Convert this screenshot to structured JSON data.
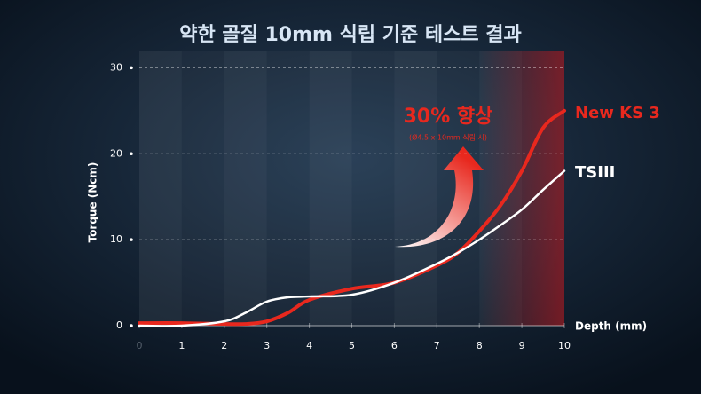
{
  "chart_data": {
    "type": "line",
    "title": "약한 골질 10mm 식립 기준  테스트 결과",
    "y_label": "Torque (Ncm)",
    "x_label": "Depth (mm)",
    "annotations": [
      "30% 향상",
      "(Ø4.5 x 10mm 식립 시)"
    ],
    "x": [
      0,
      1,
      2,
      2.5,
      3,
      3.5,
      4,
      5,
      6,
      7,
      7.5,
      8,
      8.5,
      9,
      9.5,
      10
    ],
    "series": [
      {
        "name": "New KS 3",
        "color": "#e8281e",
        "values": [
          0.3,
          0.3,
          0.2,
          0.2,
          0.5,
          1.5,
          3,
          4.3,
          5,
          7,
          8.5,
          11,
          14,
          18,
          23,
          25
        ]
      },
      {
        "name": "TSIII",
        "color": "#ffffff",
        "values": [
          0,
          0,
          0.5,
          1.5,
          2.8,
          3.3,
          3.4,
          3.6,
          5,
          7.2,
          8.5,
          10,
          11.7,
          13.5,
          15.8,
          18
        ]
      }
    ],
    "xlim": [
      0,
      10
    ],
    "xticks": [
      0,
      1,
      2,
      3,
      4,
      5,
      6,
      7,
      8,
      9,
      10
    ],
    "ylim": [
      0,
      32
    ],
    "yticks": [
      0,
      10,
      20,
      30
    ],
    "grid": true
  }
}
